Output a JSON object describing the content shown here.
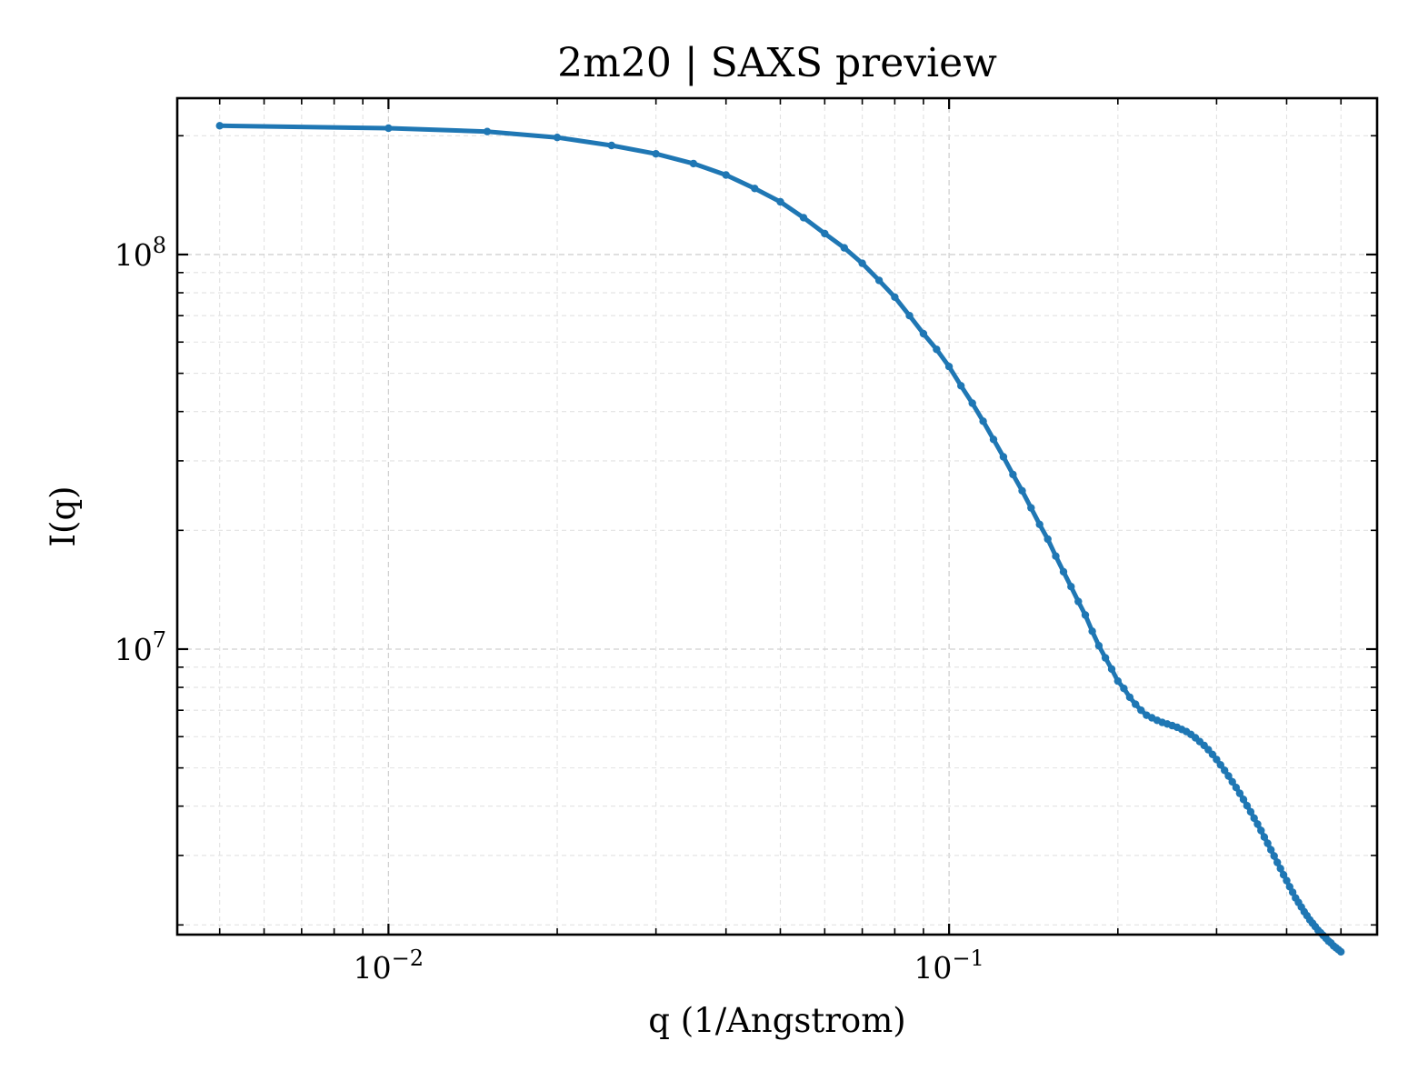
{
  "chart_data": {
    "type": "line",
    "title": "2m20 | SAXS preview",
    "xlabel": "q (1/Angstrom)",
    "ylabel": "I(q)",
    "xscale": "log",
    "yscale": "log",
    "xlim": [
      0.0042,
      0.58
    ],
    "ylim": [
      1890000,
      249000000
    ],
    "grid": true,
    "x_ticks": [
      {
        "value": 0.01,
        "base": "10",
        "exp": "−2"
      },
      {
        "value": 0.1,
        "base": "10",
        "exp": "−1"
      }
    ],
    "y_ticks": [
      {
        "value": 10000000,
        "base": "10",
        "exp": "7"
      },
      {
        "value": 100000000,
        "base": "10",
        "exp": "8"
      }
    ],
    "series": [
      {
        "color": "#1f77b4",
        "marker": "circle",
        "points": [
          [
            0.005,
            212000000
          ],
          [
            0.01,
            209000000
          ],
          [
            0.015,
            205000000
          ],
          [
            0.02,
            198000000
          ],
          [
            0.025,
            189000000
          ],
          [
            0.03,
            180000000
          ],
          [
            0.035,
            170000000
          ],
          [
            0.04,
            159000000
          ],
          [
            0.045,
            147000000
          ],
          [
            0.05,
            136000000
          ],
          [
            0.055,
            124000000
          ],
          [
            0.06,
            113000000
          ],
          [
            0.065,
            104000000
          ],
          [
            0.07,
            95000000
          ],
          [
            0.075,
            86000000
          ],
          [
            0.08,
            78000000
          ],
          [
            0.085,
            70000000
          ],
          [
            0.09,
            63000000
          ],
          [
            0.095,
            57500000
          ],
          [
            0.1,
            52000000
          ],
          [
            0.105,
            46500000
          ],
          [
            0.11,
            42000000
          ],
          [
            0.115,
            37800000
          ],
          [
            0.12,
            34000000
          ],
          [
            0.125,
            30700000
          ],
          [
            0.13,
            27700000
          ],
          [
            0.135,
            25200000
          ],
          [
            0.14,
            22800000
          ],
          [
            0.145,
            20700000
          ],
          [
            0.15,
            19000000
          ],
          [
            0.155,
            17200000
          ],
          [
            0.16,
            15700000
          ],
          [
            0.165,
            14400000
          ],
          [
            0.17,
            13200000
          ],
          [
            0.175,
            12200000
          ],
          [
            0.18,
            11100000
          ],
          [
            0.185,
            10200000
          ],
          [
            0.19,
            9500000
          ],
          [
            0.195,
            8900000
          ],
          [
            0.2,
            8300000
          ],
          [
            0.205,
            7950000
          ],
          [
            0.21,
            7550000
          ],
          [
            0.215,
            7250000
          ],
          [
            0.22,
            7000000
          ],
          [
            0.225,
            6800000
          ],
          [
            0.23,
            6700000
          ],
          [
            0.235,
            6600000
          ],
          [
            0.24,
            6520000
          ],
          [
            0.245,
            6460000
          ],
          [
            0.25,
            6400000
          ],
          [
            0.255,
            6340000
          ],
          [
            0.26,
            6260000
          ],
          [
            0.265,
            6180000
          ],
          [
            0.27,
            6080000
          ],
          [
            0.275,
            5960000
          ],
          [
            0.28,
            5830000
          ],
          [
            0.285,
            5700000
          ],
          [
            0.29,
            5560000
          ],
          [
            0.295,
            5410000
          ],
          [
            0.3,
            5250000
          ],
          [
            0.305,
            5090000
          ],
          [
            0.31,
            4930000
          ],
          [
            0.315,
            4770000
          ],
          [
            0.32,
            4610000
          ],
          [
            0.325,
            4460000
          ],
          [
            0.33,
            4310000
          ],
          [
            0.335,
            4160000
          ],
          [
            0.34,
            4010000
          ],
          [
            0.345,
            3870000
          ],
          [
            0.35,
            3730000
          ],
          [
            0.355,
            3600000
          ],
          [
            0.36,
            3470000
          ],
          [
            0.365,
            3340000
          ],
          [
            0.37,
            3220000
          ],
          [
            0.375,
            3100000
          ],
          [
            0.38,
            2990000
          ],
          [
            0.385,
            2880000
          ],
          [
            0.39,
            2780000
          ],
          [
            0.395,
            2680000
          ],
          [
            0.4,
            2590000
          ],
          [
            0.405,
            2500000
          ],
          [
            0.41,
            2420000
          ],
          [
            0.415,
            2340000
          ],
          [
            0.42,
            2280000
          ],
          [
            0.425,
            2220000
          ],
          [
            0.43,
            2160000
          ],
          [
            0.435,
            2110000
          ],
          [
            0.44,
            2060000
          ],
          [
            0.445,
            2020000
          ],
          [
            0.45,
            1980000
          ],
          [
            0.455,
            1940000
          ],
          [
            0.46,
            1910000
          ],
          [
            0.465,
            1880000
          ],
          [
            0.47,
            1850000
          ],
          [
            0.475,
            1820000
          ],
          [
            0.48,
            1800000
          ],
          [
            0.485,
            1770000
          ],
          [
            0.49,
            1750000
          ],
          [
            0.495,
            1730000
          ],
          [
            0.5,
            1710000
          ]
        ]
      }
    ]
  }
}
